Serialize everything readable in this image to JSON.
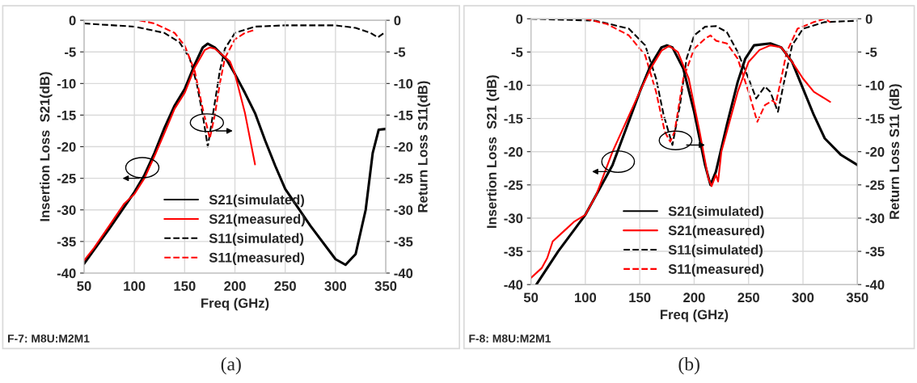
{
  "chart_data": [
    {
      "type": "line",
      "xlabel": "Freq (GHz)",
      "ylabel": "Insertion Loss  S21(dB)",
      "y2label": "Return Loss S11(dB)",
      "xlim": [
        50,
        350
      ],
      "xticks": [
        50,
        100,
        150,
        200,
        250,
        300,
        350
      ],
      "ylim": [
        -40,
        0
      ],
      "yticks": [
        -40,
        -35,
        -30,
        -25,
        -20,
        -15,
        -10,
        -5,
        0
      ],
      "y2lim": [
        -40,
        0
      ],
      "y2ticks": [
        -40,
        -35,
        -30,
        -25,
        -20,
        -15,
        -10,
        -5,
        0
      ],
      "grid": true,
      "legend": "bottom",
      "marker": "none",
      "annotations": [
        "F-7: M8U:M2M1",
        "(a)"
      ],
      "series": [
        {
          "name": "S21(simulated)",
          "color": "#000000",
          "line_style": "solid",
          "x": [
            50,
            75,
            100,
            110,
            120,
            130,
            140,
            150,
            160,
            168,
            173,
            180,
            192,
            200,
            210,
            220,
            230,
            240,
            250,
            275,
            300,
            310,
            320,
            330,
            337,
            343,
            350
          ],
          "values": [
            -38.5,
            -33,
            -27.2,
            -24.5,
            -21,
            -17,
            -13.5,
            -10.9,
            -7,
            -4.3,
            -3.7,
            -4.3,
            -6.3,
            -8.5,
            -11.5,
            -14.7,
            -19,
            -23,
            -26.7,
            -32.5,
            -37.8,
            -38.7,
            -37,
            -30,
            -21,
            -17.3,
            -17.2
          ]
        },
        {
          "name": "S21(measured)",
          "color": "#ff0000",
          "line_style": "solid",
          "x": [
            50,
            60,
            75,
            90,
            100,
            110,
            120,
            130,
            140,
            150,
            160,
            170,
            175,
            180,
            190,
            195,
            200,
            210,
            220
          ],
          "values": [
            -38,
            -36,
            -32.5,
            -29,
            -27.5,
            -25,
            -21.5,
            -17.8,
            -14,
            -11.5,
            -7.5,
            -4.7,
            -4.3,
            -4.5,
            -5.8,
            -6.5,
            -8.5,
            -14.7,
            -22.8
          ]
        },
        {
          "name": "S11(simulated)",
          "color": "#000000",
          "line_style": "dashed",
          "axis": "y2",
          "x": [
            50,
            100,
            130,
            145,
            155,
            162,
            168,
            173,
            178,
            185,
            190,
            200,
            220,
            250,
            300,
            320,
            335,
            342,
            350
          ],
          "values": [
            -0.5,
            -1,
            -2,
            -3.5,
            -6,
            -10,
            -15,
            -20,
            -15,
            -8,
            -4.5,
            -2,
            -1,
            -0.8,
            -0.8,
            -1.2,
            -2,
            -2.7,
            -1.8
          ]
        },
        {
          "name": "S11(measured)",
          "color": "#ff0000",
          "line_style": "dashed",
          "axis": "y2",
          "x": [
            105,
            120,
            140,
            150,
            160,
            168,
            175,
            180,
            185,
            190,
            200,
            210,
            220
          ],
          "values": [
            0,
            -0.5,
            -2,
            -4,
            -8,
            -14,
            -18.7,
            -15,
            -10,
            -6,
            -3,
            -2,
            -1.5
          ]
        }
      ]
    },
    {
      "type": "line",
      "xlabel": "Freq (GHz)",
      "ylabel": "Insertion Loss  S21 (dB)",
      "y2label": "Return Loss S11 (dB)",
      "xlim": [
        50,
        350
      ],
      "xticks": [
        50,
        100,
        150,
        200,
        250,
        300,
        350
      ],
      "ylim": [
        -40,
        0
      ],
      "yticks": [
        -40,
        -35,
        -30,
        -25,
        -20,
        -15,
        -10,
        -5,
        0
      ],
      "y2lim": [
        -40,
        0
      ],
      "y2ticks": [
        -40,
        -35,
        -30,
        -25,
        -20,
        -15,
        -10,
        -5,
        0
      ],
      "grid": true,
      "legend": "bottom",
      "marker": "none",
      "annotations": [
        "F-8: M8U:M2M1",
        "(b)"
      ],
      "series": [
        {
          "name": "S21(simulated)",
          "color": "#000000",
          "line_style": "solid",
          "x": [
            55,
            75,
            100,
            125,
            150,
            160,
            170,
            175,
            180,
            190,
            200,
            210,
            215,
            220,
            230,
            240,
            247,
            255,
            270,
            280,
            290,
            300,
            310,
            320,
            335,
            350
          ],
          "values": [
            -40,
            -35,
            -29.5,
            -22,
            -11,
            -7,
            -4.3,
            -4,
            -4.3,
            -7.5,
            -14,
            -22,
            -25,
            -23,
            -16,
            -9.5,
            -6,
            -4,
            -3.7,
            -4.3,
            -6.5,
            -10.5,
            -14.5,
            -18,
            -20.5,
            -22
          ]
        },
        {
          "name": "S21(measured)",
          "color": "#ff0000",
          "line_style": "solid",
          "x": [
            50,
            60,
            65,
            70,
            80,
            90,
            100,
            110,
            125,
            150,
            160,
            170,
            177,
            185,
            195,
            205,
            213,
            216,
            220,
            222,
            225,
            240,
            250,
            260,
            270,
            280,
            290,
            300,
            310,
            320,
            325
          ],
          "values": [
            -39,
            -37.5,
            -36,
            -33.5,
            -32,
            -30.5,
            -29.5,
            -26.5,
            -20,
            -11,
            -7.5,
            -4.8,
            -4.1,
            -5,
            -9,
            -17,
            -24,
            -25.2,
            -23.5,
            -24.5,
            -20,
            -11,
            -6.5,
            -4.7,
            -4,
            -4.3,
            -6.5,
            -9,
            -11,
            -12,
            -12.5
          ]
        },
        {
          "name": "S11(simulated)",
          "color": "#000000",
          "line_style": "dashed",
          "axis": "y2",
          "x": [
            50,
            110,
            140,
            155,
            165,
            172,
            180,
            187,
            193,
            200,
            210,
            220,
            230,
            240,
            250,
            257,
            265,
            270,
            277,
            282,
            290,
            300,
            320,
            350
          ],
          "values": [
            0,
            -0.3,
            -1.5,
            -4,
            -9,
            -14.5,
            -19,
            -13,
            -6,
            -2.5,
            -1.2,
            -1.1,
            -2,
            -5,
            -9,
            -12,
            -10.2,
            -11,
            -14,
            -10,
            -4,
            -1.5,
            -0.5,
            -0.3
          ]
        },
        {
          "name": "S11(measured)",
          "color": "#ff0000",
          "line_style": "dashed",
          "axis": "y2",
          "x": [
            100,
            120,
            140,
            155,
            165,
            173,
            178,
            182,
            190,
            200,
            210,
            215,
            220,
            230,
            240,
            250,
            258,
            265,
            272,
            275,
            280,
            285,
            295,
            310,
            320,
            325
          ],
          "values": [
            0,
            -0.8,
            -2.5,
            -5.5,
            -11,
            -17,
            -18.5,
            -17,
            -9,
            -4.5,
            -3,
            -2.5,
            -3.3,
            -3.7,
            -6,
            -11,
            -15.5,
            -13,
            -12.3,
            -12.8,
            -9,
            -5,
            -1.5,
            -0.5,
            0,
            -0.5
          ]
        }
      ]
    }
  ]
}
